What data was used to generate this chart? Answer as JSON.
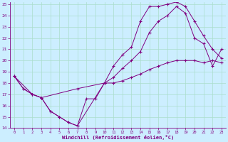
{
  "xlabel": "Windchill (Refroidissement éolien,°C)",
  "bg_color": "#cceeff",
  "line_color": "#800080",
  "grid_color": "#aaddcc",
  "xlim": [
    -0.5,
    23.5
  ],
  "ylim": [
    14,
    25.2
  ],
  "xticks": [
    0,
    1,
    2,
    3,
    4,
    5,
    6,
    7,
    8,
    9,
    10,
    11,
    12,
    13,
    14,
    15,
    16,
    17,
    18,
    19,
    20,
    21,
    22,
    23
  ],
  "yticks": [
    14,
    15,
    16,
    17,
    18,
    19,
    20,
    21,
    22,
    23,
    24,
    25
  ],
  "series": [
    {
      "x": [
        0,
        1,
        2,
        3,
        4,
        5,
        6,
        7,
        8,
        9,
        10,
        11,
        12,
        13,
        14,
        15,
        16,
        17,
        18,
        19,
        20,
        21,
        22,
        23
      ],
      "y": [
        18.6,
        17.5,
        17.0,
        16.7,
        15.5,
        15.0,
        14.5,
        14.2,
        16.6,
        16.6,
        18.0,
        19.5,
        20.5,
        21.2,
        23.5,
        24.8,
        24.8,
        25.0,
        25.2,
        24.8,
        23.5,
        22.2,
        21.0,
        20.2
      ]
    },
    {
      "x": [
        0,
        2,
        3,
        4,
        5,
        6,
        7,
        10,
        11,
        12,
        13,
        14,
        15,
        16,
        17,
        18,
        19,
        20,
        21,
        22,
        23
      ],
      "y": [
        18.6,
        17.0,
        16.7,
        15.5,
        15.0,
        14.5,
        14.2,
        18.0,
        18.5,
        19.3,
        20.0,
        20.8,
        22.5,
        23.5,
        24.0,
        24.8,
        24.2,
        22.0,
        21.5,
        19.5,
        21.0
      ]
    },
    {
      "x": [
        0,
        1,
        2,
        3,
        7,
        10,
        11,
        12,
        13,
        14,
        15,
        16,
        17,
        18,
        19,
        20,
        21,
        22,
        23
      ],
      "y": [
        18.6,
        17.5,
        17.0,
        16.7,
        17.5,
        18.0,
        18.0,
        18.2,
        18.5,
        18.8,
        19.2,
        19.5,
        19.8,
        20.0,
        20.0,
        20.0,
        19.8,
        20.0,
        19.8
      ]
    }
  ]
}
